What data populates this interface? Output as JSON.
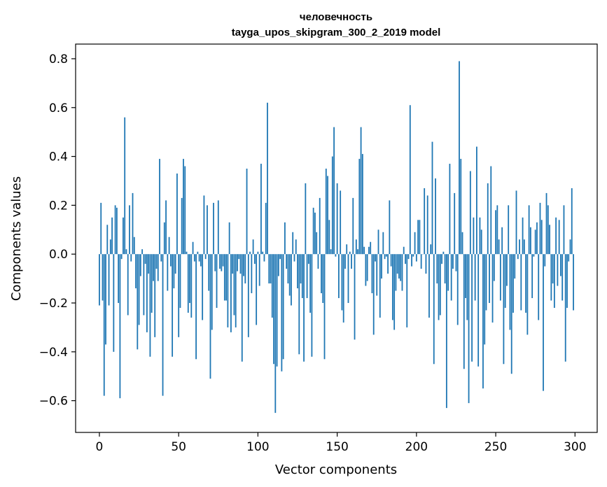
{
  "chart_data": {
    "type": "bar",
    "title": [
      "человечность",
      "tayga_upos_skipgram_300_2_2019 model"
    ],
    "xlabel": "Vector components",
    "ylabel": "Components values",
    "xlim": [
      -15,
      314
    ],
    "ylim": [
      -0.73,
      0.86
    ],
    "xticks": [
      0,
      50,
      100,
      150,
      200,
      250,
      300
    ],
    "xtick_labels": [
      "0",
      "50",
      "100",
      "150",
      "200",
      "250",
      "300"
    ],
    "yticks": [
      -0.6,
      -0.4,
      -0.2,
      0.0,
      0.2,
      0.4,
      0.6,
      0.8
    ],
    "ytick_labels": [
      "−0.6",
      "−0.4",
      "−0.2",
      "0.0",
      "0.2",
      "0.4",
      "0.6",
      "0.8"
    ],
    "bar_color": "#1f77b4",
    "grid": false,
    "x": [
      0,
      1,
      2,
      3,
      4,
      5,
      6,
      7,
      8,
      9,
      10,
      11,
      12,
      13,
      14,
      15,
      16,
      17,
      18,
      19,
      20,
      21,
      22,
      23,
      24,
      25,
      26,
      27,
      28,
      29,
      30,
      31,
      32,
      33,
      34,
      35,
      36,
      37,
      38,
      39,
      40,
      41,
      42,
      43,
      44,
      45,
      46,
      47,
      48,
      49,
      50,
      51,
      52,
      53,
      54,
      55,
      56,
      57,
      58,
      59,
      60,
      61,
      62,
      63,
      64,
      65,
      66,
      67,
      68,
      69,
      70,
      71,
      72,
      73,
      74,
      75,
      76,
      77,
      78,
      79,
      80,
      81,
      82,
      83,
      84,
      85,
      86,
      87,
      88,
      89,
      90,
      91,
      92,
      93,
      94,
      95,
      96,
      97,
      98,
      99,
      100,
      101,
      102,
      103,
      104,
      105,
      106,
      107,
      108,
      109,
      110,
      111,
      112,
      113,
      114,
      115,
      116,
      117,
      118,
      119,
      120,
      121,
      122,
      123,
      124,
      125,
      126,
      127,
      128,
      129,
      130,
      131,
      132,
      133,
      134,
      135,
      136,
      137,
      138,
      139,
      140,
      141,
      142,
      143,
      144,
      145,
      146,
      147,
      148,
      149,
      150,
      151,
      152,
      153,
      154,
      155,
      156,
      157,
      158,
      159,
      160,
      161,
      162,
      163,
      164,
      165,
      166,
      167,
      168,
      169,
      170,
      171,
      172,
      173,
      174,
      175,
      176,
      177,
      178,
      179,
      180,
      181,
      182,
      183,
      184,
      185,
      186,
      187,
      188,
      189,
      190,
      191,
      192,
      193,
      194,
      195,
      196,
      197,
      198,
      199,
      200,
      201,
      202,
      203,
      204,
      205,
      206,
      207,
      208,
      209,
      210,
      211,
      212,
      213,
      214,
      215,
      216,
      217,
      218,
      219,
      220,
      221,
      222,
      223,
      224,
      225,
      226,
      227,
      228,
      229,
      230,
      231,
      232,
      233,
      234,
      235,
      236,
      237,
      238,
      239,
      240,
      241,
      242,
      243,
      244,
      245,
      246,
      247,
      248,
      249,
      250,
      251,
      252,
      253,
      254,
      255,
      256,
      257,
      258,
      259,
      260,
      261,
      262,
      263,
      264,
      265,
      266,
      267,
      268,
      269,
      270,
      271,
      272,
      273,
      274,
      275,
      276,
      277,
      278,
      279,
      280,
      281,
      282,
      283,
      284,
      285,
      286,
      287,
      288,
      289,
      290,
      291,
      292,
      293,
      294,
      295,
      296,
      297,
      298,
      299
    ],
    "values": [
      -0.21,
      0.21,
      -0.19,
      -0.58,
      -0.37,
      0.12,
      -0.21,
      0.06,
      0.15,
      -0.4,
      0.2,
      0.19,
      -0.2,
      -0.59,
      -0.02,
      0.15,
      0.56,
      0.02,
      -0.25,
      0.2,
      -0.03,
      0.25,
      0.07,
      -0.14,
      -0.39,
      -0.29,
      -0.09,
      0.02,
      -0.25,
      -0.04,
      -0.32,
      -0.08,
      -0.42,
      -0.24,
      -0.11,
      -0.34,
      -0.06,
      -0.11,
      0.39,
      -0.03,
      -0.58,
      0.13,
      0.22,
      -0.15,
      0.07,
      -0.05,
      -0.42,
      -0.14,
      -0.08,
      0.33,
      -0.34,
      -0.22,
      0.23,
      0.39,
      0.36,
      0.01,
      -0.24,
      -0.2,
      -0.26,
      0.05,
      -0.03,
      -0.43,
      0.01,
      -0.03,
      -0.05,
      -0.27,
      0.24,
      -0.02,
      0.2,
      -0.15,
      -0.51,
      -0.31,
      0.21,
      -0.07,
      -0.22,
      0.22,
      -0.06,
      -0.07,
      -0.05,
      -0.19,
      -0.19,
      -0.3,
      0.13,
      -0.32,
      -0.08,
      -0.25,
      -0.3,
      -0.07,
      -0.02,
      -0.08,
      -0.44,
      -0.09,
      -0.12,
      0.35,
      -0.34,
      0.01,
      -0.16,
      0.06,
      -0.04,
      -0.29,
      0.01,
      -0.13,
      0.37,
      0.01,
      -0.03,
      0.21,
      0.62,
      -0.12,
      -0.12,
      -0.26,
      -0.45,
      -0.65,
      -0.46,
      -0.09,
      -0.02,
      -0.48,
      -0.43,
      0.13,
      -0.06,
      -0.12,
      -0.17,
      -0.21,
      0.09,
      -0.03,
      0.06,
      -0.14,
      -0.41,
      -0.12,
      -0.18,
      -0.44,
      0.29,
      -0.18,
      -0.04,
      -0.24,
      -0.42,
      0.19,
      0.17,
      0.09,
      -0.06,
      0.23,
      -0.16,
      -0.2,
      -0.43,
      0.35,
      0.32,
      0.14,
      0.02,
      0.4,
      0.52,
      -0.01,
      0.29,
      -0.18,
      0.26,
      -0.23,
      -0.28,
      -0.06,
      0.04,
      -0.2,
      0.01,
      -0.06,
      0.23,
      -0.35,
      0.06,
      0.02,
      0.39,
      0.52,
      0.41,
      0.03,
      -0.13,
      -0.11,
      0.03,
      0.05,
      -0.16,
      -0.33,
      -0.03,
      -0.17,
      0.1,
      -0.26,
      -0.1,
      0.09,
      -0.02,
      -0.01,
      -0.08,
      0.22,
      -0.05,
      -0.27,
      -0.31,
      -0.15,
      -0.08,
      -0.1,
      -0.11,
      -0.15,
      0.03,
      -0.04,
      -0.3,
      -0.02,
      0.61,
      -0.05,
      -0.01,
      0.09,
      -0.03,
      0.14,
      0.14,
      -0.06,
      0.0,
      0.27,
      -0.08,
      0.24,
      -0.26,
      0.04,
      0.46,
      -0.45,
      0.31,
      -0.12,
      -0.27,
      -0.25,
      -0.04,
      0.01,
      -0.12,
      -0.63,
      -0.15,
      0.37,
      -0.19,
      -0.06,
      0.25,
      -0.07,
      -0.29,
      0.79,
      0.39,
      0.09,
      -0.47,
      -0.18,
      -0.27,
      -0.61,
      0.34,
      -0.44,
      0.15,
      -0.19,
      0.44,
      -0.46,
      0.15,
      0.1,
      -0.55,
      -0.37,
      -0.23,
      0.29,
      -0.2,
      0.36,
      -0.28,
      -0.11,
      0.18,
      0.2,
      0.06,
      -0.19,
      0.11,
      -0.45,
      -0.22,
      -0.13,
      0.2,
      -0.31,
      -0.49,
      -0.24,
      -0.1,
      0.26,
      -0.02,
      0.06,
      -0.23,
      0.15,
      0.06,
      -0.24,
      -0.33,
      0.2,
      0.11,
      -0.18,
      -0.01,
      0.1,
      0.13,
      -0.27,
      0.21,
      0.14,
      -0.56,
      -0.05,
      0.25,
      0.2,
      0.12,
      -0.19,
      -0.12,
      -0.22,
      0.15,
      -0.13,
      0.14,
      -0.09,
      -0.19,
      0.2,
      -0.44,
      -0.22,
      -0.03,
      0.06,
      0.27,
      -0.23
    ],
    "values_note_desc": "approximate values read from the bar heights"
  }
}
